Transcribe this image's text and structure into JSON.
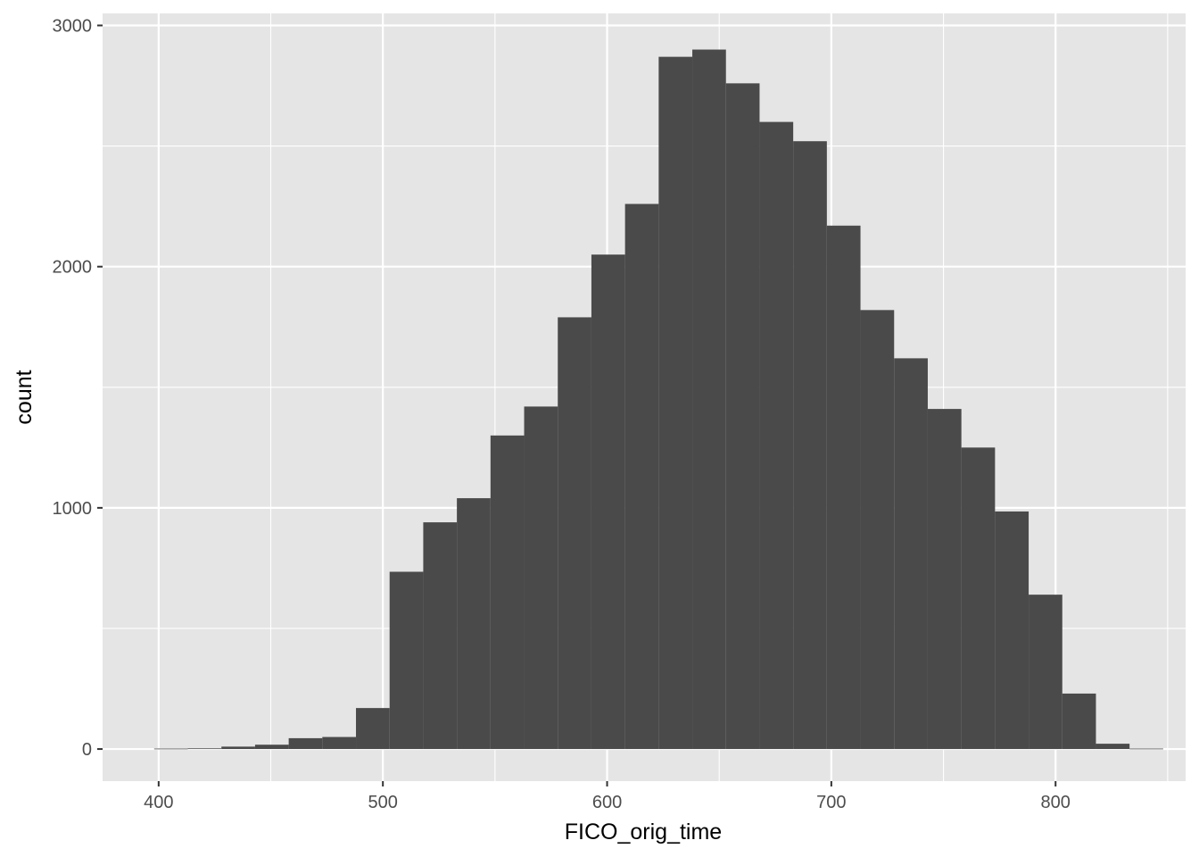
{
  "chart_data": {
    "type": "bar",
    "subtype": "histogram",
    "title": "",
    "xlabel": "FICO_orig_time",
    "ylabel": "count",
    "xlim": [
      375,
      858
    ],
    "ylim": [
      -133,
      3050
    ],
    "x_ticks": [
      400,
      500,
      600,
      700,
      800
    ],
    "y_ticks": [
      0,
      1000,
      2000,
      3000
    ],
    "x_tick_labels": [
      "400",
      "500",
      "600",
      "700",
      "800"
    ],
    "y_tick_labels": [
      "0",
      "1000",
      "2000",
      "3000"
    ],
    "grid": true,
    "legend": "none",
    "bin_width": 15,
    "bins": [
      {
        "x_start": 398,
        "x_end": 413,
        "count": 2
      },
      {
        "x_start": 413,
        "x_end": 428,
        "count": 3
      },
      {
        "x_start": 428,
        "x_end": 443,
        "count": 10
      },
      {
        "x_start": 443,
        "x_end": 458,
        "count": 18
      },
      {
        "x_start": 458,
        "x_end": 473,
        "count": 45
      },
      {
        "x_start": 473,
        "x_end": 488,
        "count": 50
      },
      {
        "x_start": 488,
        "x_end": 503,
        "count": 170
      },
      {
        "x_start": 503,
        "x_end": 518,
        "count": 735
      },
      {
        "x_start": 518,
        "x_end": 533,
        "count": 940
      },
      {
        "x_start": 533,
        "x_end": 548,
        "count": 1040
      },
      {
        "x_start": 548,
        "x_end": 563,
        "count": 1300
      },
      {
        "x_start": 563,
        "x_end": 578,
        "count": 1420
      },
      {
        "x_start": 578,
        "x_end": 593,
        "count": 1790
      },
      {
        "x_start": 593,
        "x_end": 608,
        "count": 2050
      },
      {
        "x_start": 608,
        "x_end": 623,
        "count": 2260
      },
      {
        "x_start": 623,
        "x_end": 638,
        "count": 2870
      },
      {
        "x_start": 638,
        "x_end": 653,
        "count": 2900
      },
      {
        "x_start": 653,
        "x_end": 668,
        "count": 2760
      },
      {
        "x_start": 668,
        "x_end": 683,
        "count": 2600
      },
      {
        "x_start": 683,
        "x_end": 698,
        "count": 2520
      },
      {
        "x_start": 698,
        "x_end": 713,
        "count": 2170
      },
      {
        "x_start": 713,
        "x_end": 728,
        "count": 1820
      },
      {
        "x_start": 728,
        "x_end": 743,
        "count": 1620
      },
      {
        "x_start": 743,
        "x_end": 758,
        "count": 1410
      },
      {
        "x_start": 758,
        "x_end": 773,
        "count": 1250
      },
      {
        "x_start": 773,
        "x_end": 788,
        "count": 985
      },
      {
        "x_start": 788,
        "x_end": 803,
        "count": 640
      },
      {
        "x_start": 803,
        "x_end": 818,
        "count": 230
      },
      {
        "x_start": 818,
        "x_end": 833,
        "count": 22
      },
      {
        "x_start": 833,
        "x_end": 848,
        "count": 2
      }
    ],
    "colors": {
      "panel_background": "#e5e5e5",
      "grid_major": "#ffffff",
      "bar_fill": "#4a4a4a",
      "tick_text": "#4d4d4d",
      "tick_mark": "#333333"
    }
  }
}
